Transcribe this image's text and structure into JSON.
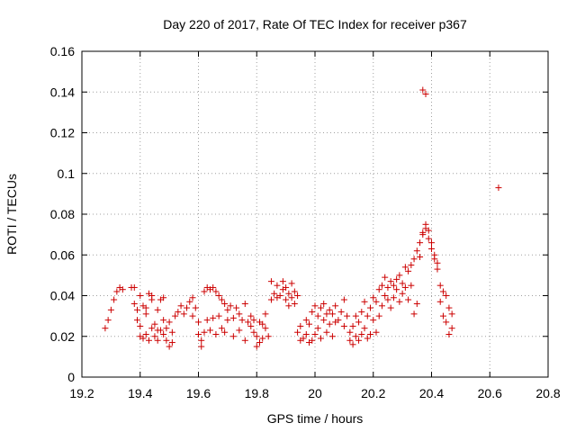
{
  "chart_data": {
    "type": "scatter",
    "title": "Day 220 of 2017, Rate Of TEC Index for receiver p367",
    "xlabel": "GPS time / hours",
    "ylabel": "ROTI / TECUs",
    "xlim": [
      19.2,
      20.8
    ],
    "ylim": [
      0,
      0.16
    ],
    "x_ticks": [
      19.2,
      19.4,
      19.6,
      19.8,
      20.0,
      20.2,
      20.4,
      20.6,
      20.8
    ],
    "x_tick_labels": [
      "19.2",
      "19.4",
      "19.6",
      "19.8",
      "20",
      "20.2",
      "20.4",
      "20.6",
      "20.8"
    ],
    "y_ticks": [
      0,
      0.02,
      0.04,
      0.06,
      0.08,
      0.1,
      0.12,
      0.14,
      0.16
    ],
    "y_tick_labels": [
      "0",
      "0.02",
      "0.04",
      "0.06",
      "0.08",
      "0.1",
      "0.12",
      "0.14",
      "0.16"
    ],
    "grid": true,
    "marker": "+",
    "series_color": "#cc0000",
    "points": [
      [
        19.28,
        0.024
      ],
      [
        19.29,
        0.028
      ],
      [
        19.3,
        0.033
      ],
      [
        19.31,
        0.038
      ],
      [
        19.32,
        0.042
      ],
      [
        19.33,
        0.044
      ],
      [
        19.34,
        0.043
      ],
      [
        19.37,
        0.044
      ],
      [
        19.38,
        0.044
      ],
      [
        19.38,
        0.036
      ],
      [
        19.39,
        0.033
      ],
      [
        19.39,
        0.028
      ],
      [
        19.4,
        0.025
      ],
      [
        19.4,
        0.02
      ],
      [
        19.41,
        0.019
      ],
      [
        19.41,
        0.035
      ],
      [
        19.42,
        0.031
      ],
      [
        19.42,
        0.021
      ],
      [
        19.43,
        0.018
      ],
      [
        19.43,
        0.041
      ],
      [
        19.44,
        0.038
      ],
      [
        19.44,
        0.024
      ],
      [
        19.45,
        0.026
      ],
      [
        19.45,
        0.02
      ],
      [
        19.46,
        0.033
      ],
      [
        19.46,
        0.018
      ],
      [
        19.47,
        0.038
      ],
      [
        19.47,
        0.023
      ],
      [
        19.48,
        0.021
      ],
      [
        19.48,
        0.028
      ],
      [
        19.49,
        0.018
      ],
      [
        19.49,
        0.024
      ],
      [
        19.5,
        0.015
      ],
      [
        19.5,
        0.027
      ],
      [
        19.51,
        0.022
      ],
      [
        19.51,
        0.017
      ],
      [
        19.4,
        0.04
      ],
      [
        19.42,
        0.034
      ],
      [
        19.44,
        0.04
      ],
      [
        19.46,
        0.023
      ],
      [
        19.48,
        0.039
      ],
      [
        19.52,
        0.03
      ],
      [
        19.53,
        0.032
      ],
      [
        19.54,
        0.035
      ],
      [
        19.55,
        0.031
      ],
      [
        19.56,
        0.034
      ],
      [
        19.57,
        0.037
      ],
      [
        19.58,
        0.039
      ],
      [
        19.58,
        0.03
      ],
      [
        19.59,
        0.034
      ],
      [
        19.6,
        0.027
      ],
      [
        19.6,
        0.021
      ],
      [
        19.61,
        0.018
      ],
      [
        19.61,
        0.015
      ],
      [
        19.62,
        0.042
      ],
      [
        19.63,
        0.044
      ],
      [
        19.64,
        0.043
      ],
      [
        19.65,
        0.044
      ],
      [
        19.66,
        0.042
      ],
      [
        19.67,
        0.04
      ],
      [
        19.68,
        0.038
      ],
      [
        19.69,
        0.036
      ],
      [
        19.7,
        0.033
      ],
      [
        19.62,
        0.022
      ],
      [
        19.63,
        0.028
      ],
      [
        19.64,
        0.023
      ],
      [
        19.65,
        0.029
      ],
      [
        19.66,
        0.021
      ],
      [
        19.67,
        0.03
      ],
      [
        19.68,
        0.024
      ],
      [
        19.69,
        0.022
      ],
      [
        19.7,
        0.028
      ],
      [
        19.71,
        0.035
      ],
      [
        19.72,
        0.029
      ],
      [
        19.73,
        0.034
      ],
      [
        19.74,
        0.031
      ],
      [
        19.75,
        0.028
      ],
      [
        19.76,
        0.036
      ],
      [
        19.77,
        0.027
      ],
      [
        19.78,
        0.03
      ],
      [
        19.79,
        0.028
      ],
      [
        19.72,
        0.02
      ],
      [
        19.74,
        0.023
      ],
      [
        19.76,
        0.018
      ],
      [
        19.78,
        0.025
      ],
      [
        19.79,
        0.022
      ],
      [
        19.8,
        0.015
      ],
      [
        19.8,
        0.02
      ],
      [
        19.81,
        0.027
      ],
      [
        19.81,
        0.017
      ],
      [
        19.82,
        0.019
      ],
      [
        19.82,
        0.026
      ],
      [
        19.83,
        0.024
      ],
      [
        19.83,
        0.031
      ],
      [
        19.84,
        0.02
      ],
      [
        19.85,
        0.038
      ],
      [
        19.85,
        0.047
      ],
      [
        19.86,
        0.041
      ],
      [
        19.87,
        0.045
      ],
      [
        19.87,
        0.039
      ],
      [
        19.88,
        0.04
      ],
      [
        19.89,
        0.047
      ],
      [
        19.89,
        0.043
      ],
      [
        19.9,
        0.038
      ],
      [
        19.9,
        0.044
      ],
      [
        19.91,
        0.041
      ],
      [
        19.91,
        0.035
      ],
      [
        19.92,
        0.046
      ],
      [
        19.92,
        0.039
      ],
      [
        19.93,
        0.042
      ],
      [
        19.93,
        0.036
      ],
      [
        19.94,
        0.04
      ],
      [
        19.94,
        0.022
      ],
      [
        19.95,
        0.018
      ],
      [
        19.95,
        0.025
      ],
      [
        19.96,
        0.019
      ],
      [
        19.97,
        0.021
      ],
      [
        19.97,
        0.028
      ],
      [
        19.98,
        0.026
      ],
      [
        19.98,
        0.017
      ],
      [
        19.99,
        0.032
      ],
      [
        19.99,
        0.018
      ],
      [
        20.0,
        0.035
      ],
      [
        20.0,
        0.021
      ],
      [
        20.01,
        0.03
      ],
      [
        20.01,
        0.024
      ],
      [
        20.02,
        0.034
      ],
      [
        20.02,
        0.019
      ],
      [
        20.03,
        0.036
      ],
      [
        20.03,
        0.028
      ],
      [
        20.04,
        0.031
      ],
      [
        20.04,
        0.022
      ],
      [
        20.05,
        0.033
      ],
      [
        20.05,
        0.026
      ],
      [
        20.06,
        0.031
      ],
      [
        20.06,
        0.02
      ],
      [
        20.07,
        0.035
      ],
      [
        20.07,
        0.027
      ],
      [
        20.08,
        0.028
      ],
      [
        20.09,
        0.032
      ],
      [
        20.1,
        0.025
      ],
      [
        20.1,
        0.038
      ],
      [
        20.11,
        0.03
      ],
      [
        20.12,
        0.018
      ],
      [
        20.12,
        0.022
      ],
      [
        20.13,
        0.016
      ],
      [
        20.13,
        0.025
      ],
      [
        20.14,
        0.02
      ],
      [
        20.14,
        0.03
      ],
      [
        20.15,
        0.027
      ],
      [
        20.15,
        0.018
      ],
      [
        20.16,
        0.032
      ],
      [
        20.16,
        0.021
      ],
      [
        20.17,
        0.037
      ],
      [
        20.17,
        0.024
      ],
      [
        20.18,
        0.03
      ],
      [
        20.18,
        0.019
      ],
      [
        20.19,
        0.034
      ],
      [
        20.19,
        0.021
      ],
      [
        20.2,
        0.039
      ],
      [
        20.2,
        0.028
      ],
      [
        20.21,
        0.037
      ],
      [
        20.21,
        0.022
      ],
      [
        20.22,
        0.043
      ],
      [
        20.22,
        0.03
      ],
      [
        20.23,
        0.045
      ],
      [
        20.23,
        0.035
      ],
      [
        20.24,
        0.04
      ],
      [
        20.24,
        0.049
      ],
      [
        20.25,
        0.044
      ],
      [
        20.25,
        0.038
      ],
      [
        20.26,
        0.047
      ],
      [
        20.26,
        0.034
      ],
      [
        20.27,
        0.045
      ],
      [
        20.27,
        0.039
      ],
      [
        20.28,
        0.043
      ],
      [
        20.28,
        0.048
      ],
      [
        20.29,
        0.037
      ],
      [
        20.29,
        0.05
      ],
      [
        20.3,
        0.046
      ],
      [
        20.3,
        0.041
      ],
      [
        20.31,
        0.044
      ],
      [
        20.31,
        0.054
      ],
      [
        20.32,
        0.052
      ],
      [
        20.32,
        0.038
      ],
      [
        20.33,
        0.055
      ],
      [
        20.33,
        0.045
      ],
      [
        20.34,
        0.031
      ],
      [
        20.34,
        0.058
      ],
      [
        20.35,
        0.062
      ],
      [
        20.35,
        0.036
      ],
      [
        20.36,
        0.066
      ],
      [
        20.36,
        0.059
      ],
      [
        20.37,
        0.07
      ],
      [
        20.37,
        0.071
      ],
      [
        20.38,
        0.073
      ],
      [
        20.38,
        0.075
      ],
      [
        20.39,
        0.072
      ],
      [
        20.39,
        0.068
      ],
      [
        20.4,
        0.066
      ],
      [
        20.4,
        0.063
      ],
      [
        20.41,
        0.06
      ],
      [
        20.41,
        0.058
      ],
      [
        20.42,
        0.056
      ],
      [
        20.42,
        0.053
      ],
      [
        20.43,
        0.045
      ],
      [
        20.43,
        0.037
      ],
      [
        20.44,
        0.042
      ],
      [
        20.44,
        0.03
      ],
      [
        20.45,
        0.027
      ],
      [
        20.45,
        0.04
      ],
      [
        20.46,
        0.034
      ],
      [
        20.46,
        0.021
      ],
      [
        20.47,
        0.031
      ],
      [
        20.47,
        0.024
      ],
      [
        20.37,
        0.141
      ],
      [
        20.38,
        0.139
      ],
      [
        20.63,
        0.093
      ]
    ]
  }
}
